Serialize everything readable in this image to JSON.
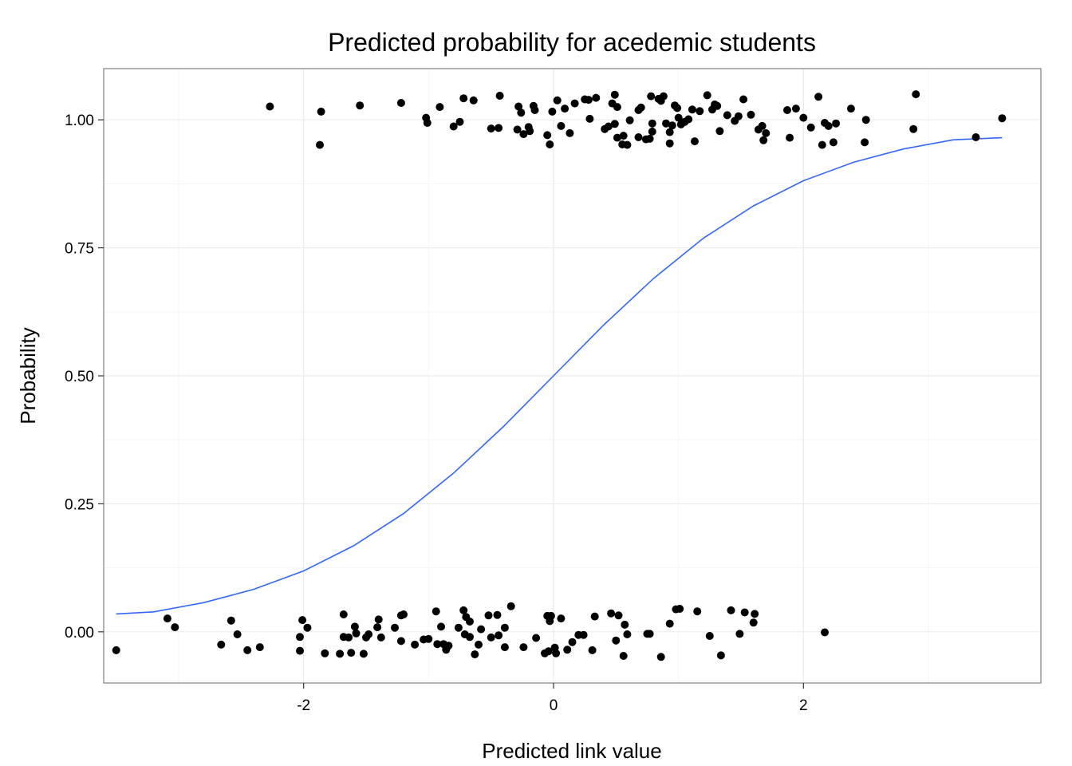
{
  "chart_data": {
    "type": "scatter",
    "title": "Predicted probability for acedemic students",
    "xlabel": "Predicted link value",
    "ylabel": "Probability",
    "xlim": [
      -3.6,
      3.9
    ],
    "ylim": [
      -0.1,
      1.1
    ],
    "x_ticks": [
      -2,
      0,
      2
    ],
    "x_tick_labels": [
      "-2",
      "0",
      "2"
    ],
    "y_ticks": [
      0,
      0.25,
      0.5,
      0.75,
      1
    ],
    "y_tick_labels": [
      "0.00",
      "0.25",
      "0.50",
      "0.75",
      "1.00"
    ],
    "grid": true,
    "legend": "none",
    "colors": {
      "points": "#000000",
      "curve": "#3366FF",
      "grid": "#EBEBEB",
      "panel_border": "#7F7F7F"
    },
    "series": [
      {
        "type": "scatter",
        "points": [
          [
            -2.27,
            1.026
          ],
          [
            -1.86,
            1.016
          ],
          [
            -1.87,
            0.951
          ],
          [
            -1.55,
            1.028
          ],
          [
            -1.22,
            1.033
          ],
          [
            -1.02,
            1.004
          ],
          [
            -1.01,
            0.994
          ],
          [
            -0.91,
            1.025
          ],
          [
            -0.8,
            0.987
          ],
          [
            -0.75,
            0.996
          ],
          [
            -0.72,
            1.042
          ],
          [
            -0.64,
            1.038
          ],
          [
            -0.5,
            0.983
          ],
          [
            -0.44,
            0.984
          ],
          [
            -0.43,
            1.047
          ],
          [
            -0.29,
            0.981
          ],
          [
            -0.28,
            1.026
          ],
          [
            -0.26,
            1.014
          ],
          [
            -0.24,
            0.972
          ],
          [
            -0.2,
            0.986
          ],
          [
            -0.19,
            0.978
          ],
          [
            -0.16,
            1.027
          ],
          [
            -0.15,
            1.019
          ],
          [
            -0.05,
            0.97
          ],
          [
            -0.03,
            0.952
          ],
          [
            -0.01,
            1.016
          ],
          [
            0.03,
            1.038
          ],
          [
            0.06,
            0.988
          ],
          [
            0.09,
            1.022
          ],
          [
            0.13,
            0.974
          ],
          [
            0.17,
            1.032
          ],
          [
            0.25,
            1.04
          ],
          [
            0.28,
            1.039
          ],
          [
            0.29,
            1.002
          ],
          [
            0.34,
            1.043
          ],
          [
            0.41,
            0.982
          ],
          [
            0.44,
            0.987
          ],
          [
            0.47,
            1.032
          ],
          [
            0.49,
            0.992
          ],
          [
            0.49,
            1.049
          ],
          [
            0.51,
            1.025
          ],
          [
            0.51,
            0.965
          ],
          [
            0.55,
            0.952
          ],
          [
            0.56,
            0.969
          ],
          [
            0.59,
            0.951
          ],
          [
            0.61,
            0.999
          ],
          [
            0.68,
            0.966
          ],
          [
            0.68,
            1.019
          ],
          [
            0.7,
            1.024
          ],
          [
            0.74,
            0.962
          ],
          [
            0.77,
            0.963
          ],
          [
            0.78,
            1.046
          ],
          [
            0.79,
            0.977
          ],
          [
            0.79,
            0.993
          ],
          [
            0.84,
            1.041
          ],
          [
            0.86,
            1.037
          ],
          [
            0.88,
            1.046
          ],
          [
            0.9,
            0.993
          ],
          [
            0.93,
            0.954
          ],
          [
            0.93,
            0.976
          ],
          [
            0.95,
            0.989
          ],
          [
            0.97,
            1.028
          ],
          [
            0.99,
            1.023
          ],
          [
            1.0,
            1.004
          ],
          [
            1.02,
            0.991
          ],
          [
            1.05,
            0.996
          ],
          [
            1.08,
            1.001
          ],
          [
            1.11,
            1.02
          ],
          [
            1.13,
            0.958
          ],
          [
            1.17,
            1.017
          ],
          [
            1.23,
            1.048
          ],
          [
            1.27,
            1.02
          ],
          [
            1.29,
            1.03
          ],
          [
            1.31,
            1.027
          ],
          [
            1.33,
            0.978
          ],
          [
            1.39,
            1.009
          ],
          [
            1.45,
            0.998
          ],
          [
            1.48,
            1.007
          ],
          [
            1.52,
            1.04
          ],
          [
            1.58,
            1.01
          ],
          [
            1.64,
            0.981
          ],
          [
            1.67,
            0.988
          ],
          [
            1.68,
            0.96
          ],
          [
            1.7,
            0.974
          ],
          [
            1.87,
            1.019
          ],
          [
            1.89,
            0.965
          ],
          [
            1.94,
            1.022
          ],
          [
            2.0,
            1.004
          ],
          [
            2.06,
            0.985
          ],
          [
            2.12,
            1.045
          ],
          [
            2.15,
            0.951
          ],
          [
            2.17,
            0.994
          ],
          [
            2.2,
            0.988
          ],
          [
            2.24,
            0.956
          ],
          [
            2.26,
            0.993
          ],
          [
            2.38,
            1.022
          ],
          [
            2.49,
            0.956
          ],
          [
            2.5,
            1.0
          ],
          [
            2.88,
            0.982
          ],
          [
            2.9,
            1.05
          ],
          [
            3.38,
            0.966
          ],
          [
            3.59,
            1.003
          ],
          [
            -3.5,
            -0.036
          ],
          [
            -3.09,
            0.026
          ],
          [
            -3.03,
            0.009
          ],
          [
            -2.66,
            -0.025
          ],
          [
            -2.58,
            0.022
          ],
          [
            -2.53,
            -0.005
          ],
          [
            -2.45,
            -0.036
          ],
          [
            -2.35,
            -0.03
          ],
          [
            -2.03,
            -0.037
          ],
          [
            -2.03,
            -0.01
          ],
          [
            -2.01,
            0.023
          ],
          [
            -1.97,
            0.008
          ],
          [
            -1.83,
            -0.042
          ],
          [
            -1.71,
            -0.043
          ],
          [
            -1.68,
            0.034
          ],
          [
            -1.68,
            -0.01
          ],
          [
            -1.64,
            -0.011
          ],
          [
            -1.62,
            -0.041
          ],
          [
            -1.59,
            0.01
          ],
          [
            -1.58,
            -0.003
          ],
          [
            -1.52,
            -0.043
          ],
          [
            -1.5,
            -0.011
          ],
          [
            -1.48,
            -0.005
          ],
          [
            -1.41,
            0.009
          ],
          [
            -1.4,
            0.024
          ],
          [
            -1.38,
            -0.011
          ],
          [
            -1.27,
            0.008
          ],
          [
            -1.22,
            0.032
          ],
          [
            -1.22,
            -0.018
          ],
          [
            -1.2,
            0.034
          ],
          [
            -1.11,
            -0.025
          ],
          [
            -1.04,
            -0.015
          ],
          [
            -1.0,
            -0.014
          ],
          [
            -0.94,
            0.04
          ],
          [
            -0.93,
            -0.024
          ],
          [
            -0.9,
            0.01
          ],
          [
            -0.88,
            -0.024
          ],
          [
            -0.86,
            -0.035
          ],
          [
            -0.84,
            -0.027
          ],
          [
            -0.76,
            0.008
          ],
          [
            -0.72,
            0.042
          ],
          [
            -0.71,
            -0.005
          ],
          [
            -0.7,
            0.029
          ],
          [
            -0.67,
            0.02
          ],
          [
            -0.67,
            -0.01
          ],
          [
            -0.63,
            -0.044
          ],
          [
            -0.6,
            -0.025
          ],
          [
            -0.58,
            0.005
          ],
          [
            -0.52,
            0.032
          ],
          [
            -0.5,
            -0.011
          ],
          [
            -0.45,
            0.033
          ],
          [
            -0.44,
            -0.007
          ],
          [
            -0.39,
            -0.03
          ],
          [
            -0.39,
            0.008
          ],
          [
            -0.34,
            0.05
          ],
          [
            -0.24,
            -0.03
          ],
          [
            -0.14,
            -0.012
          ],
          [
            -0.07,
            -0.042
          ],
          [
            -0.05,
            0.031
          ],
          [
            -0.04,
            -0.038
          ],
          [
            -0.03,
            0.021
          ],
          [
            -0.02,
            0.031
          ],
          [
            0.01,
            -0.031
          ],
          [
            0.02,
            -0.042
          ],
          [
            0.06,
            0.026
          ],
          [
            0.11,
            -0.035
          ],
          [
            0.15,
            -0.02
          ],
          [
            0.2,
            -0.006
          ],
          [
            0.24,
            -0.006
          ],
          [
            0.31,
            -0.036
          ],
          [
            0.33,
            0.03
          ],
          [
            0.46,
            0.036
          ],
          [
            0.5,
            -0.017
          ],
          [
            0.52,
            0.032
          ],
          [
            0.56,
            -0.047
          ],
          [
            0.57,
            0.014
          ],
          [
            0.59,
            -0.005
          ],
          [
            0.75,
            -0.004
          ],
          [
            0.77,
            -0.004
          ],
          [
            0.86,
            -0.049
          ],
          [
            0.93,
            0.016
          ],
          [
            0.98,
            0.044
          ],
          [
            1.01,
            0.045
          ],
          [
            1.15,
            0.04
          ],
          [
            1.25,
            -0.008
          ],
          [
            1.34,
            -0.046
          ],
          [
            1.42,
            0.042
          ],
          [
            1.49,
            -0.004
          ],
          [
            1.53,
            0.038
          ],
          [
            1.6,
            0.018
          ],
          [
            1.61,
            0.035
          ],
          [
            2.17,
            -0.001
          ]
        ]
      },
      {
        "type": "line",
        "name": "",
        "points": [
          [
            -3.5,
            0.035
          ],
          [
            -3.2,
            0.039
          ],
          [
            -2.8,
            0.057
          ],
          [
            -2.4,
            0.083
          ],
          [
            -2.0,
            0.119
          ],
          [
            -1.6,
            0.168
          ],
          [
            -1.2,
            0.231
          ],
          [
            -0.8,
            0.31
          ],
          [
            -0.4,
            0.401
          ],
          [
            0.0,
            0.5
          ],
          [
            0.4,
            0.599
          ],
          [
            0.8,
            0.69
          ],
          [
            1.2,
            0.769
          ],
          [
            1.6,
            0.832
          ],
          [
            2.0,
            0.881
          ],
          [
            2.4,
            0.917
          ],
          [
            2.8,
            0.943
          ],
          [
            3.2,
            0.961
          ],
          [
            3.59,
            0.965
          ]
        ]
      }
    ]
  }
}
